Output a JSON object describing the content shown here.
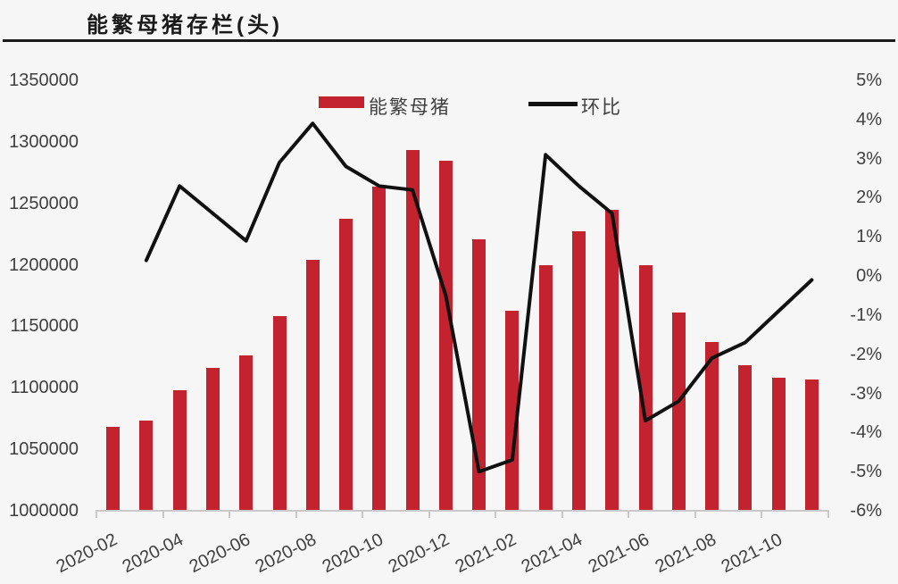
{
  "title": "能繁母猪存栏(头)",
  "legend": {
    "bar_label": "能繁母猪",
    "line_label": "环比"
  },
  "colors": {
    "bar": "#c2232e",
    "line": "#111111",
    "axis_text": "#3f3f3f",
    "title_text": "#1a1a1a",
    "title_rule": "#1b1b1b",
    "baseline": "#c9c9c9",
    "background": "#f6f6f6"
  },
  "chart_data": {
    "type": "bar",
    "title": "能繁母猪存栏(头)",
    "grid": false,
    "legend_position": "top-center",
    "categories": [
      "2020-02",
      "2020-03",
      "2020-04",
      "2020-05",
      "2020-06",
      "2020-07",
      "2020-08",
      "2020-09",
      "2020-10",
      "2020-11",
      "2020-12",
      "2021-01",
      "2021-02",
      "2021-03",
      "2021-04",
      "2021-05",
      "2021-06",
      "2021-07",
      "2021-08",
      "2021-09",
      "2021-10",
      "2021-11"
    ],
    "series": [
      {
        "name": "能繁母猪",
        "type": "bar",
        "axis": "left",
        "values": [
          1068000,
          1073000,
          1098000,
          1116500,
          1126000,
          1158500,
          1204000,
          1237500,
          1263500,
          1293500,
          1285000,
          1220500,
          1163000,
          1199500,
          1227000,
          1245000,
          1199500,
          1161500,
          1137500,
          1118500,
          1108000,
          1106500
        ]
      },
      {
        "name": "环比",
        "type": "line",
        "axis": "right",
        "values": [
          null,
          0.4,
          2.3,
          1.6,
          0.9,
          2.9,
          3.9,
          2.8,
          2.3,
          2.2,
          -0.5,
          -5.0,
          -4.7,
          3.1,
          2.3,
          1.6,
          -3.7,
          -3.2,
          -2.1,
          -1.7,
          -0.9,
          -0.1
        ]
      }
    ],
    "left_axis": {
      "min": 1000000,
      "max": 1350000,
      "step": 50000,
      "ticks": [
        "1350000",
        "1300000",
        "1250000",
        "1200000",
        "1150000",
        "1100000",
        "1050000",
        "1000000"
      ]
    },
    "right_axis": {
      "min": -6,
      "max": 5,
      "step": 1,
      "ticks": [
        "5%",
        "4%",
        "3%",
        "2%",
        "1%",
        "0%",
        "-1%",
        "-2%",
        "-3%",
        "-4%",
        "-5%",
        "-6%"
      ]
    },
    "x_axis": {
      "tick_labels": [
        "2020-02",
        "2020-04",
        "2020-06",
        "2020-08",
        "2020-10",
        "2020-12",
        "2021-02",
        "2021-04",
        "2021-06",
        "2021-08",
        "2021-10"
      ],
      "label_every": 2
    }
  }
}
